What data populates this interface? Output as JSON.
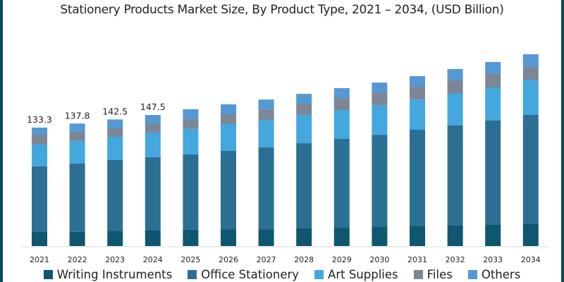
{
  "chart_data": {
    "type": "bar",
    "stacked": true,
    "title": "Stationery Products Market Size, By Product Type, 2021 – 2034, (USD Billion)",
    "xlabel": "",
    "ylabel": "",
    "ylim": [
      0,
      220
    ],
    "grid": false,
    "legend_position": "bottom",
    "categories": [
      "2021",
      "2022",
      "2023",
      "2024",
      "2025",
      "2026",
      "2027",
      "2028",
      "2029",
      "2030",
      "2031",
      "2032",
      "2033",
      "2034"
    ],
    "series": [
      {
        "name": "Writing Instruments",
        "color": "#0f5670",
        "values": [
          15.9,
          15.9,
          16.7,
          17.5,
          18.3,
          19.0,
          19.0,
          19.8,
          20.6,
          21.4,
          22.2,
          23.0,
          23.8,
          24.6
        ]
      },
      {
        "name": "Office Stationery",
        "color": "#2d6f93",
        "values": [
          73.8,
          77.0,
          80.1,
          82.5,
          84.9,
          88.1,
          92.0,
          96.0,
          100.0,
          103.9,
          108.7,
          112.7,
          117.4,
          123.0
        ]
      },
      {
        "name": "Art Supplies",
        "color": "#44a7de",
        "values": [
          24.6,
          25.4,
          26.2,
          27.8,
          28.6,
          30.2,
          30.9,
          31.7,
          32.5,
          33.3,
          34.1,
          36.5,
          37.3,
          38.9
        ]
      },
      {
        "name": "Files",
        "color": "#7b8797",
        "values": [
          11.1,
          10.3,
          9.5,
          9.5,
          11.1,
          11.1,
          11.9,
          12.7,
          13.5,
          14.3,
          14.3,
          14.3,
          15.1,
          15.1
        ]
      },
      {
        "name": "Others",
        "color": "#5598d3",
        "values": [
          7.9,
          9.2,
          10.0,
          10.2,
          11.1,
          11.1,
          11.1,
          11.1,
          11.1,
          11.1,
          11.9,
          12.7,
          13.5,
          14.3
        ]
      }
    ],
    "data_labels": [
      {
        "category": "2021",
        "text": "133.3"
      },
      {
        "category": "2022",
        "text": "137.8"
      },
      {
        "category": "2023",
        "text": "142.5"
      },
      {
        "category": "2024",
        "text": "147.5"
      }
    ]
  }
}
